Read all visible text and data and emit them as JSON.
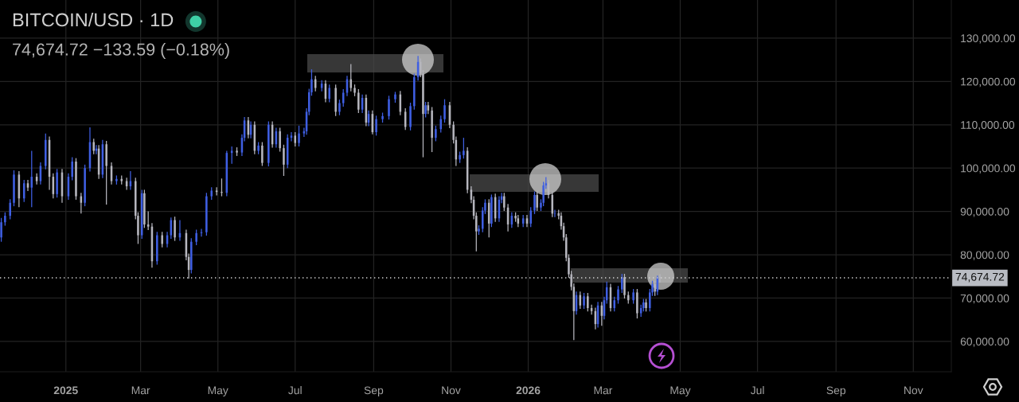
{
  "chart_data": {
    "type": "candlestick",
    "title": "BITCOIN/USD · 1D",
    "subtitle": "74,674.72 −133.59 (−0.18%)",
    "x": [
      "2024-11-11",
      "2024-11-14",
      "2024-11-18",
      "2024-11-21",
      "2024-11-25",
      "2024-11-29",
      "2024-12-02",
      "2024-12-05",
      "2024-12-09",
      "2024-12-12",
      "2024-12-16",
      "2024-12-19",
      "2024-12-22",
      "2024-12-25",
      "2024-12-29",
      "2025-01-03",
      "2025-01-06",
      "2025-01-09",
      "2025-01-13",
      "2025-01-16",
      "2025-01-20",
      "2025-01-23",
      "2025-01-25",
      "2025-01-27",
      "2025-01-30",
      "2025-02-02",
      "2025-02-06",
      "2025-02-10",
      "2025-02-14",
      "2025-02-18",
      "2025-02-21",
      "2025-02-25",
      "2025-02-27",
      "2025-03-02",
      "2025-03-04",
      "2025-03-07",
      "2025-03-10",
      "2025-03-14",
      "2025-03-18",
      "2025-03-22",
      "2025-03-25",
      "2025-03-28",
      "2025-04-01",
      "2025-04-06",
      "2025-04-08",
      "2025-04-10",
      "2025-04-14",
      "2025-04-18",
      "2025-04-22",
      "2025-04-26",
      "2025-04-30",
      "2025-05-04",
      "2025-05-08",
      "2025-05-12",
      "2025-05-16",
      "2025-05-20",
      "2025-05-22",
      "2025-05-25",
      "2025-05-27",
      "2025-05-30",
      "2025-06-02",
      "2025-06-05",
      "2025-06-10",
      "2025-06-13",
      "2025-06-16",
      "2025-06-19",
      "2025-06-22",
      "2025-06-25",
      "2025-06-28",
      "2025-07-01",
      "2025-07-04",
      "2025-07-08",
      "2025-07-10",
      "2025-07-12",
      "2025-07-14",
      "2025-07-17",
      "2025-07-22",
      "2025-07-25",
      "2025-07-28",
      "2025-08-02",
      "2025-08-05",
      "2025-08-08",
      "2025-08-11",
      "2025-08-14",
      "2025-08-17",
      "2025-08-20",
      "2025-08-23",
      "2025-08-26",
      "2025-08-28",
      "2025-08-31",
      "2025-09-03",
      "2025-09-08",
      "2025-09-13",
      "2025-09-18",
      "2025-09-22",
      "2025-09-26",
      "2025-09-30",
      "2025-10-03",
      "2025-10-06",
      "2025-10-08",
      "2025-10-10",
      "2025-10-12",
      "2025-10-14",
      "2025-10-17",
      "2025-10-20",
      "2025-10-24",
      "2025-10-27",
      "2025-10-31",
      "2025-11-03",
      "2025-11-05",
      "2025-11-08",
      "2025-11-11",
      "2025-11-14",
      "2025-11-17",
      "2025-11-19",
      "2025-11-21",
      "2025-11-23",
      "2025-11-26",
      "2025-11-28",
      "2025-12-01",
      "2025-12-03",
      "2025-12-06",
      "2025-12-09",
      "2025-12-11",
      "2025-12-13",
      "2025-12-16",
      "2025-12-19",
      "2025-12-22",
      "2025-12-24",
      "2025-12-28",
      "2025-12-31",
      "2026-01-03",
      "2026-01-06",
      "2026-01-08",
      "2026-01-11",
      "2026-01-13",
      "2026-01-15",
      "2026-01-17",
      "2026-01-20",
      "2026-01-22",
      "2026-01-25",
      "2026-01-27",
      "2026-01-29",
      "2026-01-31",
      "2026-02-02",
      "2026-02-04",
      "2026-02-06",
      "2026-02-08",
      "2026-02-11",
      "2026-02-14",
      "2026-02-17",
      "2026-02-20",
      "2026-02-23",
      "2026-02-25",
      "2026-02-28",
      "2026-03-02",
      "2026-03-04",
      "2026-03-07",
      "2026-03-10",
      "2026-03-13",
      "2026-03-16",
      "2026-03-18",
      "2026-03-21",
      "2026-03-25",
      "2026-03-28",
      "2026-03-31",
      "2026-04-02",
      "2026-04-04",
      "2026-04-07",
      "2026-04-09",
      "2026-04-11",
      "2026-04-13",
      "2026-04-15"
    ],
    "ohlc": [
      [
        84000,
        88500,
        83000,
        87500
      ],
      [
        87500,
        89800,
        86700,
        89000
      ],
      [
        89000,
        92800,
        88200,
        92000
      ],
      [
        92000,
        99500,
        91200,
        98500
      ],
      [
        98500,
        99300,
        91000,
        93000
      ],
      [
        93000,
        97300,
        92200,
        96500
      ],
      [
        96500,
        97300,
        94700,
        95500
      ],
      [
        95500,
        104000,
        91000,
        98000
      ],
      [
        98000,
        98800,
        96200,
        97000
      ],
      [
        97000,
        101300,
        96200,
        100500
      ],
      [
        100500,
        108000,
        99700,
        106500
      ],
      [
        106500,
        107300,
        95000,
        98000
      ],
      [
        98000,
        98800,
        93000,
        94000
      ],
      [
        94000,
        99800,
        93200,
        99000
      ],
      [
        99000,
        99800,
        92000,
        93500
      ],
      [
        93500,
        98800,
        92700,
        98000
      ],
      [
        98000,
        102500,
        97200,
        101500
      ],
      [
        101500,
        102300,
        92700,
        93500
      ],
      [
        93500,
        94300,
        89500,
        92000
      ],
      [
        92000,
        100800,
        91200,
        100000
      ],
      [
        100000,
        109400,
        99200,
        106000
      ],
      [
        106000,
        106800,
        103200,
        104000
      ],
      [
        104000,
        105300,
        103200,
        104500
      ],
      [
        104500,
        105300,
        97500,
        98500
      ],
      [
        98500,
        106500,
        97700,
        105500
      ],
      [
        105500,
        106300,
        91600,
        100500
      ],
      [
        100500,
        101300,
        96200,
        97000
      ],
      [
        97000,
        98300,
        96200,
        97500
      ],
      [
        97500,
        98300,
        96200,
        97000
      ],
      [
        97000,
        97800,
        95000,
        95800
      ],
      [
        95800,
        99300,
        95000,
        97000
      ],
      [
        97000,
        97800,
        88200,
        89000
      ],
      [
        89000,
        89800,
        82500,
        84500
      ],
      [
        84500,
        95000,
        83700,
        94200
      ],
      [
        94200,
        95000,
        86200,
        87000
      ],
      [
        87000,
        90000,
        85700,
        86500
      ],
      [
        86500,
        87300,
        77000,
        78500
      ],
      [
        78500,
        85300,
        77700,
        84500
      ],
      [
        84500,
        85300,
        81700,
        82500
      ],
      [
        82500,
        85300,
        81700,
        84500
      ],
      [
        84500,
        88600,
        83700,
        88000
      ],
      [
        88000,
        88800,
        83200,
        84000
      ],
      [
        84000,
        88000,
        83200,
        85000
      ],
      [
        85000,
        85800,
        78700,
        79500
      ],
      [
        79500,
        80300,
        74500,
        76500
      ],
      [
        76500,
        83800,
        75700,
        83000
      ],
      [
        83000,
        85800,
        82200,
        85000
      ],
      [
        85000,
        86000,
        84200,
        85200
      ],
      [
        85200,
        94300,
        84400,
        93500
      ],
      [
        93500,
        95600,
        92700,
        94800
      ],
      [
        94800,
        95600,
        93700,
        94500
      ],
      [
        94500,
        97600,
        93500,
        94300
      ],
      [
        94300,
        104000,
        93500,
        103500
      ],
      [
        103500,
        105000,
        101000,
        104000
      ],
      [
        104000,
        104800,
        102800,
        103600
      ],
      [
        103600,
        107800,
        102800,
        107000
      ],
      [
        107000,
        111800,
        106200,
        111000
      ],
      [
        111000,
        111800,
        106900,
        107700
      ],
      [
        107700,
        110800,
        106900,
        110000
      ],
      [
        110000,
        110800,
        103200,
        104000
      ],
      [
        104000,
        106000,
        103200,
        105200
      ],
      [
        105200,
        106000,
        100500,
        101200
      ],
      [
        101200,
        110800,
        100400,
        110000
      ],
      [
        110000,
        110800,
        104700,
        105500
      ],
      [
        105500,
        109300,
        104700,
        108500
      ],
      [
        108500,
        109300,
        103800,
        104600
      ],
      [
        104600,
        105400,
        98200,
        100800
      ],
      [
        100800,
        107800,
        100000,
        107000
      ],
      [
        107000,
        108300,
        106200,
        107500
      ],
      [
        107500,
        108300,
        105000,
        105800
      ],
      [
        105800,
        109800,
        105000,
        108000
      ],
      [
        108000,
        109300,
        107200,
        108500
      ],
      [
        108500,
        113800,
        107700,
        113000
      ],
      [
        113000,
        118300,
        112200,
        117500
      ],
      [
        117500,
        122800,
        116700,
        120500
      ],
      [
        120500,
        121300,
        117700,
        118500
      ],
      [
        118500,
        120300,
        117700,
        119500
      ],
      [
        119500,
        120300,
        115200,
        116000
      ],
      [
        116000,
        119300,
        115200,
        118500
      ],
      [
        118500,
        119300,
        112000,
        113000
      ],
      [
        113000,
        115800,
        112200,
        115000
      ],
      [
        115000,
        118200,
        114200,
        117400
      ],
      [
        117400,
        121300,
        116600,
        120500
      ],
      [
        120500,
        124000,
        117700,
        118500
      ],
      [
        118500,
        119300,
        116600,
        117400
      ],
      [
        117400,
        118200,
        112700,
        113500
      ],
      [
        113500,
        117000,
        112700,
        116200
      ],
      [
        116200,
        117000,
        109700,
        110500
      ],
      [
        110500,
        113300,
        109700,
        112500
      ],
      [
        112500,
        113300,
        107800,
        108300
      ],
      [
        108300,
        112100,
        107500,
        111300
      ],
      [
        111300,
        112800,
        110500,
        112000
      ],
      [
        112000,
        116700,
        111200,
        115900
      ],
      [
        115900,
        117600,
        115100,
        117000
      ],
      [
        117000,
        117800,
        112200,
        113000
      ],
      [
        113000,
        113800,
        108800,
        109500
      ],
      [
        109500,
        115100,
        108700,
        114300
      ],
      [
        114300,
        121800,
        113500,
        121000
      ],
      [
        121000,
        125900,
        120200,
        124500
      ],
      [
        124500,
        125300,
        121000,
        121800
      ],
      [
        121800,
        122600,
        102500,
        112500
      ],
      [
        112500,
        115300,
        111700,
        114500
      ],
      [
        114500,
        115300,
        112500,
        113300
      ],
      [
        113300,
        114100,
        103700,
        107000
      ],
      [
        107000,
        109800,
        106200,
        109000
      ],
      [
        109000,
        112100,
        108200,
        111300
      ],
      [
        111300,
        115900,
        110500,
        114500
      ],
      [
        114500,
        115300,
        109200,
        110000
      ],
      [
        110000,
        110800,
        105700,
        106500
      ],
      [
        106500,
        107300,
        100500,
        102000
      ],
      [
        102000,
        103800,
        101200,
        103000
      ],
      [
        103000,
        107000,
        102200,
        104000
      ],
      [
        104000,
        104800,
        94200,
        95000
      ],
      [
        95000,
        95800,
        91900,
        92700
      ],
      [
        92700,
        93500,
        88200,
        89000
      ],
      [
        89000,
        89800,
        80800,
        85400
      ],
      [
        85400,
        86800,
        84600,
        86000
      ],
      [
        86000,
        91000,
        85200,
        90200
      ],
      [
        90200,
        92800,
        89400,
        92000
      ],
      [
        92000,
        92800,
        84000,
        87200
      ],
      [
        87200,
        93900,
        86400,
        93300
      ],
      [
        93300,
        94100,
        87600,
        88400
      ],
      [
        88400,
        93500,
        87600,
        92700
      ],
      [
        92700,
        94300,
        91900,
        93500
      ],
      [
        93500,
        94300,
        90100,
        90900
      ],
      [
        90900,
        91700,
        85400,
        87000
      ],
      [
        87000,
        89800,
        86200,
        89000
      ],
      [
        89000,
        89800,
        87600,
        88400
      ],
      [
        88400,
        89200,
        86400,
        87200
      ],
      [
        87200,
        89200,
        86400,
        88400
      ],
      [
        88400,
        89200,
        86400,
        87200
      ],
      [
        87200,
        91000,
        86400,
        90200
      ],
      [
        90200,
        94600,
        89400,
        93800
      ],
      [
        93800,
        94600,
        90100,
        90900
      ],
      [
        90900,
        92800,
        90100,
        92000
      ],
      [
        92000,
        96800,
        91200,
        96000
      ],
      [
        96000,
        97900,
        95200,
        96500
      ],
      [
        96500,
        97300,
        93000,
        93800
      ],
      [
        93800,
        94600,
        88700,
        89500
      ],
      [
        89500,
        90400,
        88700,
        89600
      ],
      [
        89600,
        90400,
        88200,
        89000
      ],
      [
        89000,
        89800,
        85800,
        86600
      ],
      [
        86600,
        87400,
        83200,
        84000
      ],
      [
        84000,
        84800,
        78500,
        79300
      ],
      [
        79300,
        80100,
        74700,
        75500
      ],
      [
        75500,
        76300,
        71800,
        72600
      ],
      [
        72600,
        73400,
        60300,
        67000
      ],
      [
        67000,
        71500,
        66200,
        70700
      ],
      [
        70700,
        71500,
        67500,
        68300
      ],
      [
        68300,
        71200,
        67500,
        70400
      ],
      [
        70400,
        71200,
        66900,
        67700
      ],
      [
        67700,
        68500,
        66200,
        67000
      ],
      [
        67000,
        67800,
        62800,
        64000
      ],
      [
        64000,
        69100,
        63200,
        68300
      ],
      [
        68300,
        69100,
        63600,
        65900
      ],
      [
        65900,
        70300,
        65100,
        69500
      ],
      [
        69500,
        73800,
        68700,
        72500
      ],
      [
        72500,
        73300,
        66900,
        67700
      ],
      [
        67700,
        70300,
        66900,
        69500
      ],
      [
        69500,
        72800,
        68700,
        72000
      ],
      [
        72000,
        75600,
        71200,
        74800
      ],
      [
        74800,
        75600,
        69900,
        70700
      ],
      [
        70700,
        71500,
        68700,
        69500
      ],
      [
        69500,
        72100,
        68700,
        71300
      ],
      [
        71300,
        72100,
        65300,
        66500
      ],
      [
        66500,
        68500,
        65700,
        67700
      ],
      [
        67700,
        69800,
        66900,
        69000
      ],
      [
        69000,
        69800,
        66900,
        67700
      ],
      [
        67700,
        72100,
        66900,
        71300
      ],
      [
        71300,
        74000,
        70500,
        73200
      ],
      [
        73200,
        74000,
        70500,
        71500
      ],
      [
        71500,
        75200,
        70700,
        74800
      ],
      [
        74800,
        75500,
        73600,
        74674.72
      ]
    ],
    "colors": [
      "#3f5fe3",
      "#3f5fe3",
      "#3f5fe3",
      "#3f5fe3",
      "#b6b6be",
      "#3f5fe3",
      "#b6b6be",
      "#3f5fe3",
      "#b6b6be",
      "#3f5fe3",
      "#3f5fe3",
      "#b6b6be",
      "#b6b6be",
      "#3f5fe3",
      "#b6b6be",
      "#3f5fe3",
      "#3f5fe3",
      "#b6b6be",
      "#b6b6be",
      "#3f5fe3",
      "#3f5fe3",
      "#b6b6be",
      "#3f5fe3",
      "#b6b6be",
      "#3f5fe3",
      "#b6b6be",
      "#b6b6be",
      "#3f5fe3",
      "#b6b6be",
      "#b6b6be",
      "#3f5fe3",
      "#b6b6be",
      "#b6b6be",
      "#3f5fe3",
      "#b6b6be",
      "#b6b6be",
      "#b6b6be",
      "#3f5fe3",
      "#b6b6be",
      "#3f5fe3",
      "#3f5fe3",
      "#b6b6be",
      "#3f5fe3",
      "#b6b6be",
      "#b6b6be",
      "#3f5fe3",
      "#3f5fe3",
      "#3f5fe3",
      "#3f5fe3",
      "#3f5fe3",
      "#b6b6be",
      "#b6b6be",
      "#3f5fe3",
      "#3f5fe3",
      "#b6b6be",
      "#3f5fe3",
      "#3f5fe3",
      "#b6b6be",
      "#3f5fe3",
      "#b6b6be",
      "#3f5fe3",
      "#b6b6be",
      "#3f5fe3",
      "#b6b6be",
      "#3f5fe3",
      "#b6b6be",
      "#b6b6be",
      "#3f5fe3",
      "#3f5fe3",
      "#b6b6be",
      "#3f5fe3",
      "#3f5fe3",
      "#3f5fe3",
      "#3f5fe3",
      "#3f5fe3",
      "#b6b6be",
      "#3f5fe3",
      "#b6b6be",
      "#3f5fe3",
      "#b6b6be",
      "#3f5fe3",
      "#3f5fe3",
      "#3f5fe3",
      "#b6b6be",
      "#b6b6be",
      "#b6b6be",
      "#3f5fe3",
      "#b6b6be",
      "#3f5fe3",
      "#b6b6be",
      "#3f5fe3",
      "#3f5fe3",
      "#3f5fe3",
      "#3f5fe3",
      "#b6b6be",
      "#b6b6be",
      "#3f5fe3",
      "#3f5fe3",
      "#3f5fe3",
      "#b6b6be",
      "#b6b6be",
      "#3f5fe3",
      "#b6b6be",
      "#b6b6be",
      "#3f5fe3",
      "#3f5fe3",
      "#3f5fe3",
      "#b6b6be",
      "#b6b6be",
      "#b6b6be",
      "#3f5fe3",
      "#3f5fe3",
      "#b6b6be",
      "#b6b6be",
      "#b6b6be",
      "#b6b6be",
      "#3f5fe3",
      "#3f5fe3",
      "#3f5fe3",
      "#b6b6be",
      "#3f5fe3",
      "#b6b6be",
      "#3f5fe3",
      "#3f5fe3",
      "#b6b6be",
      "#b6b6be",
      "#3f5fe3",
      "#b6b6be",
      "#b6b6be",
      "#3f5fe3",
      "#b6b6be",
      "#3f5fe3",
      "#3f5fe3",
      "#b6b6be",
      "#3f5fe3",
      "#3f5fe3",
      "#3f5fe3",
      "#b6b6be",
      "#b6b6be",
      "#3f5fe3",
      "#b6b6be",
      "#b6b6be",
      "#b6b6be",
      "#b6b6be",
      "#b6b6be",
      "#b6b6be",
      "#b6b6be",
      "#3f5fe3",
      "#b6b6be",
      "#3f5fe3",
      "#b6b6be",
      "#b6b6be",
      "#b6b6be",
      "#3f5fe3",
      "#b6b6be",
      "#3f5fe3",
      "#3f5fe3",
      "#b6b6be",
      "#3f5fe3",
      "#3f5fe3",
      "#3f5fe3",
      "#b6b6be",
      "#b6b6be",
      "#3f5fe3",
      "#b6b6be",
      "#3f5fe3",
      "#3f5fe3",
      "#b6b6be",
      "#3f5fe3",
      "#3f5fe3",
      "#b6b6be",
      "#3f5fe3",
      "#b6b6be"
    ],
    "xlim": [
      "2024-11-10",
      "2026-12-01"
    ],
    "ylim": [
      53000,
      138800
    ],
    "xticks": [
      {
        "value": "2025-01-01",
        "label": "2025"
      },
      {
        "value": "2025-03-01",
        "label": "Mar"
      },
      {
        "value": "2025-05-01",
        "label": "May"
      },
      {
        "value": "2025-07-01",
        "label": "Jul"
      },
      {
        "value": "2025-09-01",
        "label": "Sep"
      },
      {
        "value": "2025-11-01",
        "label": "Nov"
      },
      {
        "value": "2026-01-01",
        "label": "2026"
      },
      {
        "value": "2026-03-01",
        "label": "Mar"
      },
      {
        "value": "2026-05-01",
        "label": "May"
      },
      {
        "value": "2026-07-01",
        "label": "Jul"
      },
      {
        "value": "2026-09-01",
        "label": "Sep"
      },
      {
        "value": "2026-11-01",
        "label": "Nov"
      }
    ],
    "yticks": [
      {
        "value": 60000,
        "label": "60,000.00"
      },
      {
        "value": 70000,
        "label": "70,000.00"
      },
      {
        "value": 80000,
        "label": "80,000.00"
      },
      {
        "value": 90000,
        "label": "90,000.00"
      },
      {
        "value": 100000,
        "label": "100,000.00"
      },
      {
        "value": 110000,
        "label": "110,000.00"
      },
      {
        "value": 120000,
        "label": "120,000.00"
      },
      {
        "value": 130000,
        "label": "130,000.00"
      }
    ],
    "ref_lines": [
      {
        "axis": "y",
        "value": 74674.72,
        "label": "74,674.72",
        "line_style": "dotted",
        "color": "#d2d2d2"
      }
    ],
    "grid": true
  }
}
